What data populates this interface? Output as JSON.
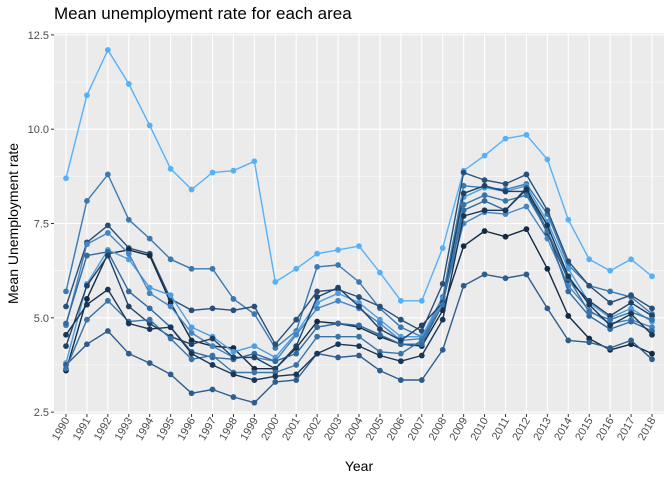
{
  "chart_data": {
    "type": "line",
    "title": "Mean unemployment rate for each area",
    "xlabel": "Year",
    "ylabel": "Mean Unemployment rate",
    "x": [
      "1990",
      "1991",
      "1992",
      "1993",
      "1994",
      "1995",
      "1996",
      "1997",
      "1998",
      "1999",
      "2000",
      "2001",
      "2002",
      "2003",
      "2004",
      "2005",
      "2006",
      "2007",
      "2008",
      "2009",
      "2010",
      "2011",
      "2012",
      "2013",
      "2014",
      "2015",
      "2016",
      "2017",
      "2018"
    ],
    "y_ticks": [
      2.5,
      5.0,
      7.5,
      10.0,
      12.5
    ],
    "y_tick_labels": [
      "2.5",
      "5.0",
      "7.5",
      "10.0",
      "12.5"
    ],
    "ylim": [
      2.45,
      12.55
    ],
    "grid": true,
    "legend": "none",
    "series": [
      {
        "color": "#56b1f7",
        "values": [
          8.7,
          10.9,
          12.1,
          11.2,
          10.1,
          8.95,
          8.4,
          8.85,
          8.9,
          9.15,
          5.95,
          6.3,
          6.7,
          6.8,
          6.9,
          6.2,
          5.45,
          5.45,
          6.85,
          8.9,
          9.3,
          9.75,
          9.85,
          9.2,
          7.6,
          6.55,
          6.25,
          6.55,
          6.1
        ]
      },
      {
        "color": "#3b7ab0",
        "values": [
          5.7,
          8.1,
          8.8,
          7.6,
          7.1,
          6.55,
          6.3,
          6.3,
          5.5,
          5.1,
          4.2,
          4.65,
          6.35,
          6.4,
          5.95,
          5.25,
          4.75,
          4.5,
          5.55,
          8.5,
          8.45,
          8.4,
          8.55,
          7.75,
          6.4,
          5.85,
          5.7,
          5.55,
          5.1
        ]
      },
      {
        "color": "#28507a",
        "values": [
          5.3,
          7.0,
          7.45,
          6.85,
          6.7,
          5.5,
          5.2,
          5.25,
          5.2,
          5.3,
          4.3,
          4.95,
          5.7,
          5.75,
          5.55,
          5.3,
          4.95,
          4.65,
          5.9,
          8.85,
          8.65,
          8.55,
          8.8,
          7.85,
          6.5,
          5.85,
          5.4,
          5.6,
          5.25
        ]
      },
      {
        "color": "#132b43",
        "values": [
          3.6,
          5.5,
          6.7,
          6.8,
          6.65,
          5.4,
          4.4,
          4.25,
          4.2,
          3.65,
          3.65,
          4.2,
          4.9,
          4.85,
          4.75,
          4.5,
          4.3,
          4.25,
          5.2,
          6.9,
          7.3,
          7.15,
          7.35,
          6.3,
          5.05,
          4.45,
          4.15,
          4.3,
          4.05
        ]
      },
      {
        "color": "#4e9ee2",
        "values": [
          3.8,
          5.9,
          6.8,
          6.55,
          5.8,
          5.6,
          4.75,
          4.5,
          4.1,
          4.25,
          3.95,
          4.6,
          5.4,
          5.65,
          5.4,
          4.95,
          4.5,
          4.5,
          5.5,
          8.2,
          8.45,
          8.35,
          8.5,
          7.55,
          6.3,
          5.4,
          5.0,
          5.25,
          4.9
        ]
      },
      {
        "color": "#4585c3",
        "values": [
          4.8,
          6.95,
          7.25,
          6.7,
          5.65,
          5.3,
          4.6,
          4.25,
          3.95,
          3.95,
          3.85,
          4.55,
          5.25,
          5.45,
          5.25,
          4.85,
          4.4,
          4.45,
          5.45,
          7.5,
          7.8,
          7.75,
          7.95,
          7.1,
          5.85,
          5.2,
          4.85,
          4.95,
          4.75
        ]
      },
      {
        "color": "#336aa0",
        "values": [
          4.85,
          6.65,
          6.75,
          5.7,
          5.25,
          4.75,
          4.1,
          3.95,
          3.9,
          4.05,
          3.85,
          4.05,
          4.75,
          4.85,
          4.8,
          4.55,
          4.3,
          4.3,
          5.35,
          7.85,
          8.1,
          7.85,
          8.45,
          7.3,
          5.7,
          5.05,
          4.7,
          4.9,
          4.65
        ]
      },
      {
        "color": "#1f4266",
        "values": [
          4.25,
          5.85,
          6.65,
          5.3,
          4.85,
          4.5,
          4.3,
          4.45,
          3.95,
          3.95,
          3.65,
          4.25,
          5.55,
          5.8,
          5.3,
          4.7,
          4.4,
          4.8,
          5.4,
          8.3,
          8.5,
          8.35,
          8.35,
          7.25,
          6.0,
          5.45,
          5.05,
          5.4,
          5.05
        ]
      },
      {
        "color": "#2e5e8d",
        "values": [
          3.75,
          4.3,
          4.65,
          4.05,
          3.8,
          3.5,
          3.0,
          3.1,
          2.9,
          2.75,
          3.3,
          3.35,
          4.05,
          3.95,
          4.0,
          3.6,
          3.35,
          3.35,
          4.15,
          5.85,
          6.15,
          6.05,
          6.15,
          5.25,
          4.4,
          4.35,
          4.2,
          4.4,
          3.9
        ]
      },
      {
        "color": "#3a75a8",
        "values": [
          3.65,
          4.95,
          5.45,
          4.9,
          4.95,
          4.45,
          3.9,
          4.0,
          3.55,
          3.55,
          3.55,
          3.75,
          4.5,
          4.5,
          4.5,
          4.1,
          4.05,
          4.4,
          5.35,
          8.0,
          8.25,
          8.1,
          8.25,
          7.3,
          6.05,
          5.15,
          4.95,
          5.15,
          4.95
        ]
      },
      {
        "color": "#1a3756",
        "values": [
          4.55,
          5.35,
          5.75,
          4.85,
          4.7,
          4.75,
          4.05,
          3.75,
          3.5,
          3.35,
          3.45,
          3.5,
          4.05,
          4.3,
          4.25,
          4.0,
          3.85,
          4.0,
          4.95,
          7.7,
          7.85,
          7.85,
          8.4,
          7.45,
          6.1,
          5.35,
          4.8,
          5.1,
          4.55
        ]
      }
    ]
  }
}
